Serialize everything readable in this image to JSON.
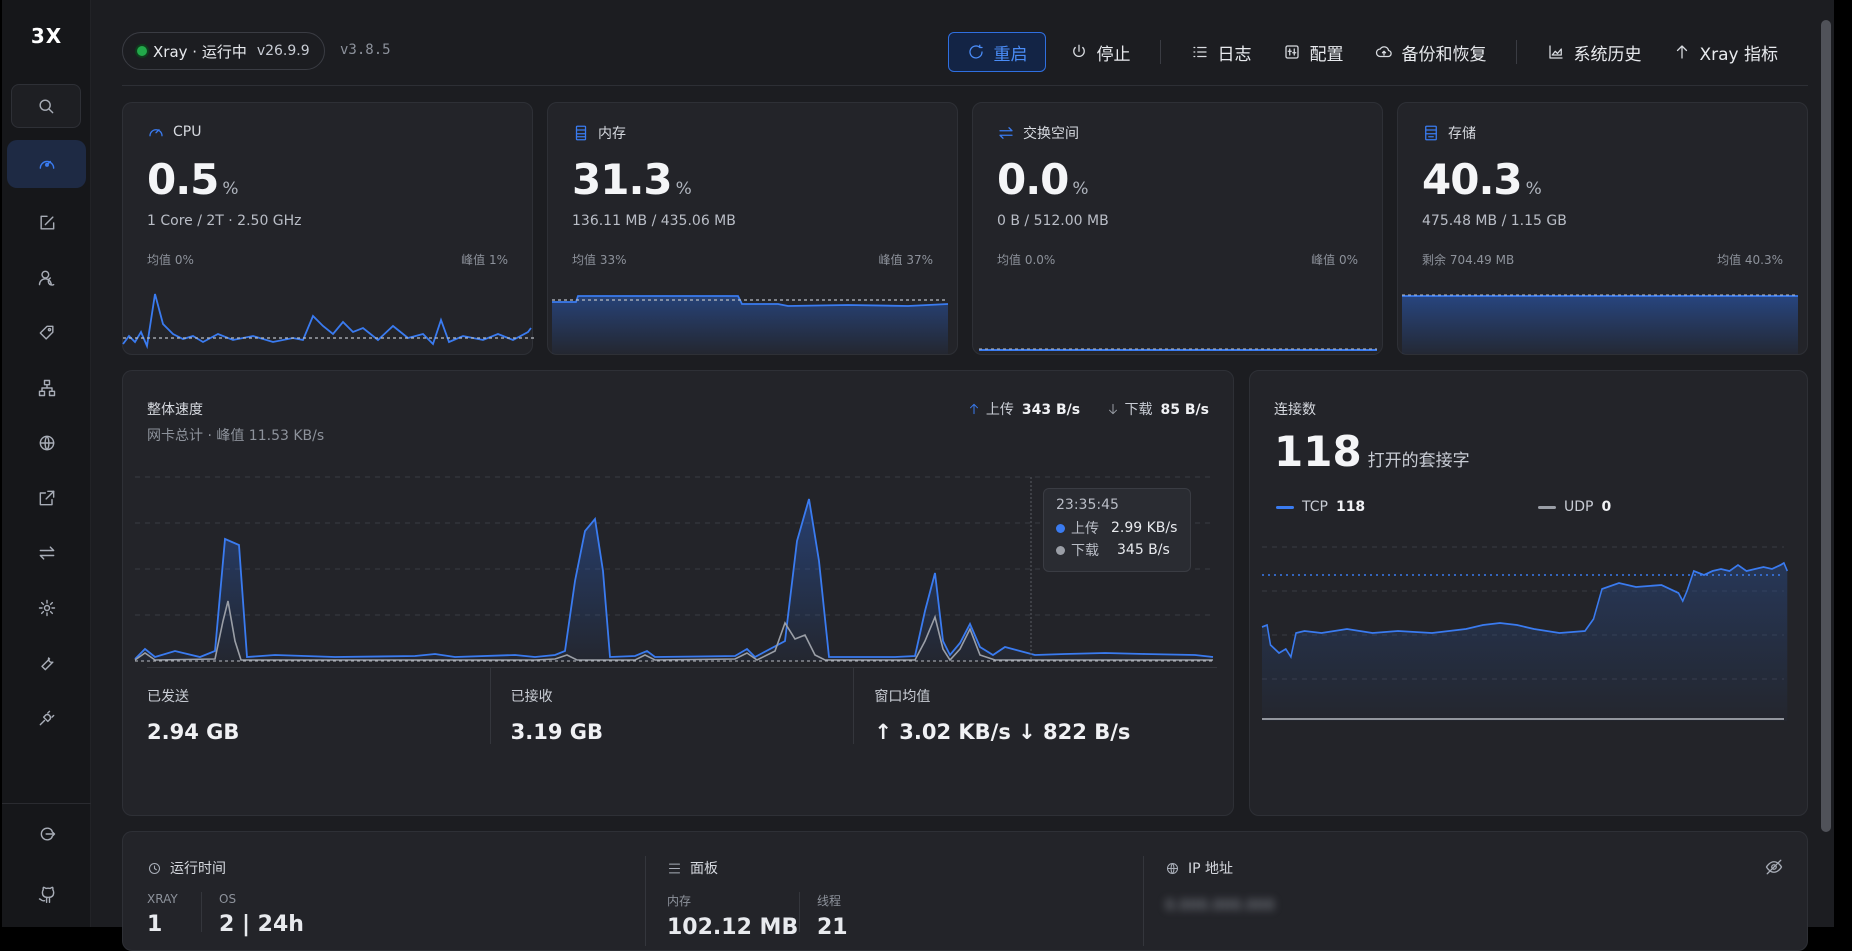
{
  "logo": "3X",
  "status": {
    "label": "Xray · 运行中",
    "version": "v26.9.9",
    "panel_version": "v3.8.5"
  },
  "actions": {
    "restart": "重启",
    "stop": "停止",
    "logs": "日志",
    "config": "配置",
    "backup": "备份和恢复",
    "history": "系统历史",
    "metrics": "Xray 指标"
  },
  "stats": {
    "cpu": {
      "title": "CPU",
      "value": "0.5",
      "unit": "%",
      "sub": "1 Core / 2T · 2.50 GHz",
      "left": "均值 0%",
      "right": "峰值 1%"
    },
    "mem": {
      "title": "内存",
      "value": "31.3",
      "unit": "%",
      "sub": "136.11 MB / 435.06 MB",
      "left": "均值 33%",
      "right": "峰值 37%"
    },
    "swap": {
      "title": "交换空间",
      "value": "0.0",
      "unit": "%",
      "sub": "0 B / 512.00 MB",
      "left": "均值 0.0%",
      "right": "峰值 0%"
    },
    "disk": {
      "title": "存储",
      "value": "40.3",
      "unit": "%",
      "sub": "475.48 MB / 1.15 GB",
      "left": "剩余 704.49 MB",
      "right": "均值 40.3%"
    }
  },
  "speed": {
    "title": "整体速度",
    "subtitle": "网卡总计 · 峰值 11.53 KB/s",
    "up_label": "上传",
    "up_value": "343 B/s",
    "down_label": "下载",
    "down_value": "85 B/s",
    "tooltip": {
      "time": "23:35:45",
      "up_label": "上传",
      "up_value": "2.99 KB/s",
      "down_label": "下载",
      "down_value": "345 B/s"
    },
    "sent_label": "已发送",
    "sent_value": "2.94 GB",
    "recv_label": "已接收",
    "recv_value": "3.19 GB",
    "avg_label": "窗口均值",
    "avg_value": "↑ 3.02 KB/s ↓ 822 B/s"
  },
  "connections": {
    "title": "连接数",
    "count": "118",
    "count_label": "打开的套接字",
    "tcp_label": "TCP",
    "tcp_value": "118",
    "udp_label": "UDP",
    "udp_value": "0"
  },
  "info": {
    "uptime_title": "运行时间",
    "xray_label": "XRAY",
    "os_label": "OS",
    "xray_value": "1",
    "os_value": "2 | 24h",
    "panel_title": "面板",
    "mem_label": "内存",
    "threads_label": "线程",
    "mem_value": "102.12 MB",
    "threads_value": "21",
    "ip_title": "IP 地址",
    "ip_value": "0.000.000.000"
  },
  "colors": {
    "accent": "#3a7bf0",
    "upload": "#3a7bf0",
    "download": "#9a9ea6",
    "ok": "#22a84a"
  }
}
